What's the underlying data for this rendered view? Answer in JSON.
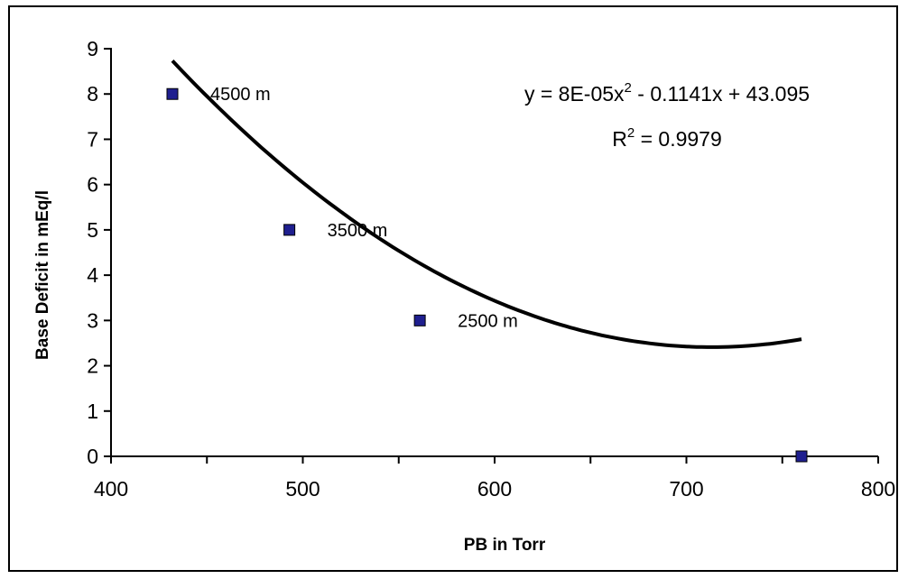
{
  "chart_data": {
    "type": "scatter",
    "xlabel": "PB in Torr",
    "ylabel": "Base Deficit in mEq/l",
    "xlim": [
      400,
      800
    ],
    "ylim": [
      0,
      9
    ],
    "x_major_ticks": [
      400,
      500,
      600,
      700,
      800
    ],
    "x_minor_ticks": [
      450,
      550,
      650,
      750
    ],
    "y_ticks": [
      0,
      1,
      2,
      3,
      4,
      5,
      6,
      7,
      8,
      9
    ],
    "grid": false,
    "series": [
      {
        "marker_color": "#1f1f8f",
        "points": [
          {
            "x": 432,
            "y": 8,
            "label": "4500 m"
          },
          {
            "x": 493,
            "y": 5,
            "label": "3500 m"
          },
          {
            "x": 561,
            "y": 3,
            "label": "2500 m"
          },
          {
            "x": 760,
            "y": 0,
            "label": ""
          }
        ]
      }
    ],
    "trendline": {
      "type": "polynomial",
      "coefficients": {
        "a": 8e-05,
        "b": -0.1141,
        "c": 43.095
      },
      "x_range": [
        432,
        760
      ],
      "color": "#000000",
      "equation_text": {
        "lhs": "y = 8E-05x",
        "sup1": "2",
        "rest": " - 0.1141x + 43.095"
      },
      "r2_text": {
        "base": "R",
        "sup": "2",
        "rest": " = 0.9979"
      }
    }
  }
}
